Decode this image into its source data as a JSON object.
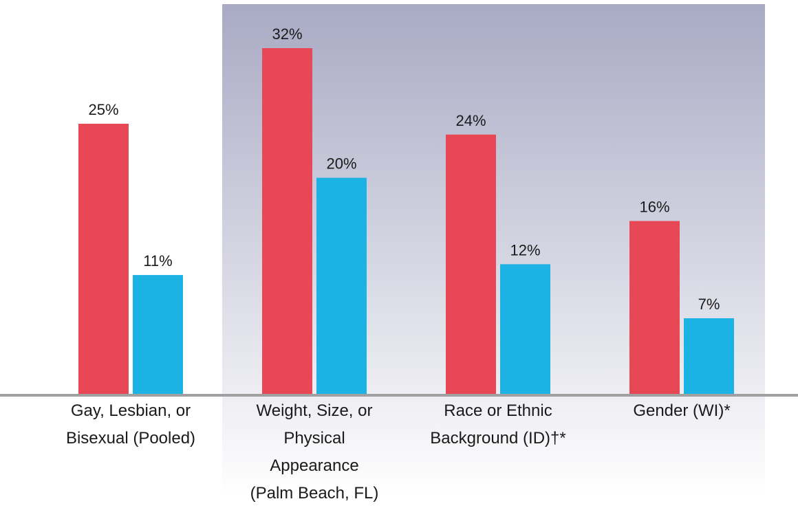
{
  "chart_data": {
    "type": "bar",
    "title": "",
    "xlabel": "",
    "ylabel": "",
    "ylim": [
      0,
      32
    ],
    "grid": false,
    "legend": "none",
    "categories": [
      [
        "Gay, Lesbian, or",
        "Bisexual (Pooled)"
      ],
      [
        "Weight, Size, or",
        "Physical",
        "Appearance",
        "(Palm Beach, FL)"
      ],
      [
        "Race or Ethnic",
        "Background (ID)†*"
      ],
      [
        "Gender (WI)*"
      ]
    ],
    "series": [
      {
        "color": "#e84856",
        "values": [
          25,
          32,
          24,
          16
        ],
        "labels": [
          "25%",
          "32%",
          "24%",
          "16%"
        ]
      },
      {
        "color": "#1cb3e4",
        "values": [
          11,
          20,
          12,
          7
        ],
        "labels": [
          "11%",
          "20%",
          "12%",
          "7%"
        ]
      }
    ],
    "highlight": {
      "categories": [
        1,
        2,
        3
      ],
      "color_top": "#a9aac4",
      "color_bottom": "#ffffff"
    },
    "baseline_color": "#a0a0a0"
  }
}
